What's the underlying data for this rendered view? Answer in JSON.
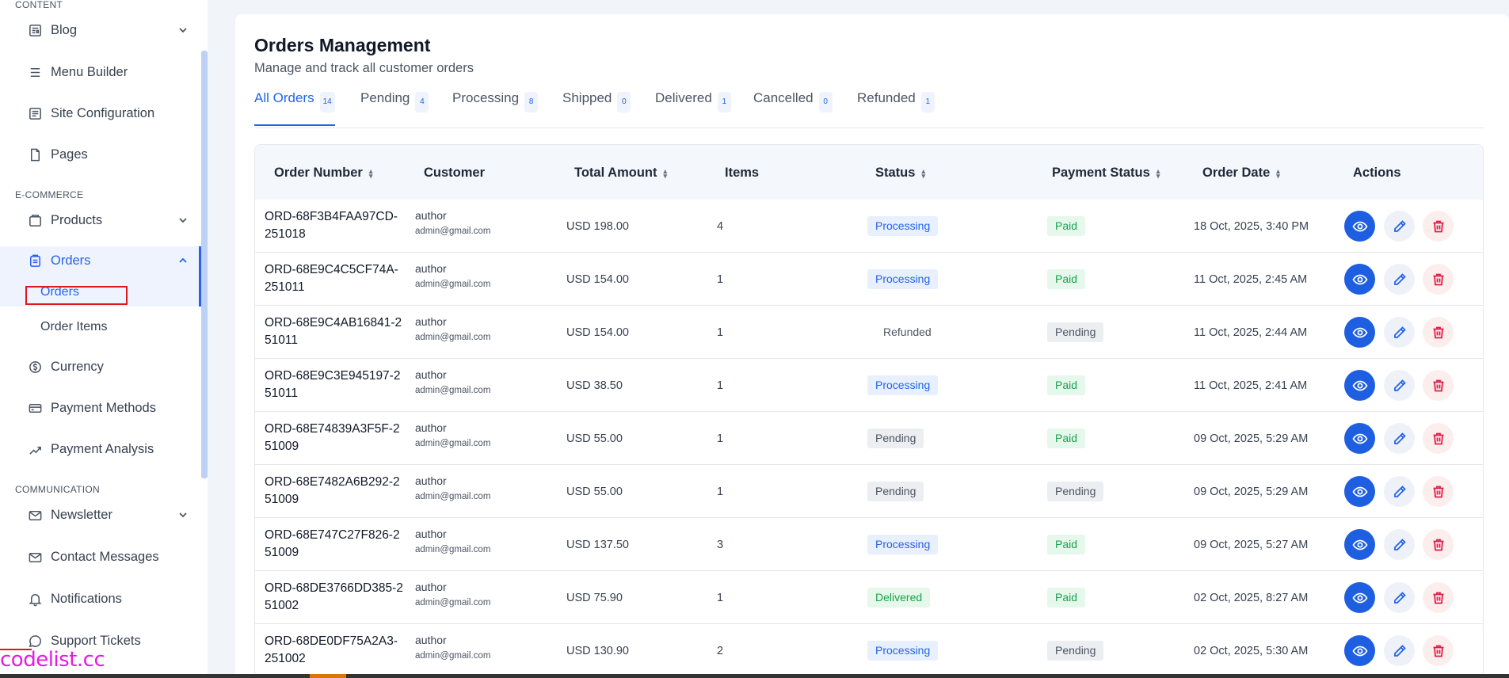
{
  "sidebar": {
    "sections": {
      "content": "CONTENT",
      "ecommerce": "E-COMMERCE",
      "communication": "COMMUNICATION"
    },
    "items": {
      "blog": "Blog",
      "menu_builder": "Menu Builder",
      "site_configuration": "Site Configuration",
      "pages": "Pages",
      "products": "Products",
      "orders": "Orders",
      "currency": "Currency",
      "payment_methods": "Payment Methods",
      "payment_analysis": "Payment Analysis",
      "newsletter": "Newsletter",
      "contact_messages": "Contact Messages",
      "notifications": "Notifications",
      "support_tickets": "Support Tickets"
    },
    "sub_items": {
      "orders": "Orders",
      "order_items": "Order Items"
    },
    "accent_color": "#2563eb"
  },
  "watermark": "codelist.cc",
  "page": {
    "title": "Orders Management",
    "subtitle": "Manage and track all customer orders"
  },
  "tabs": [
    {
      "label": "All Orders",
      "count": "14"
    },
    {
      "label": "Pending",
      "count": "4"
    },
    {
      "label": "Processing",
      "count": "8"
    },
    {
      "label": "Shipped",
      "count": "0"
    },
    {
      "label": "Delivered",
      "count": "1"
    },
    {
      "label": "Cancelled",
      "count": "0"
    },
    {
      "label": "Refunded",
      "count": "1"
    }
  ],
  "table": {
    "headers": {
      "order_number": "Order Number",
      "customer": "Customer",
      "total_amount": "Total Amount",
      "items": "Items",
      "status": "Status",
      "payment_status": "Payment Status",
      "order_date": "Order Date",
      "actions": "Actions"
    },
    "rows": [
      {
        "order_number": "ORD-68F3B4FAA97CD-251018",
        "customer": "author",
        "email": "admin@gmail.com",
        "total": "USD 198.00",
        "items": "4",
        "status": "Processing",
        "payment": "Paid",
        "date": "18 Oct, 2025, 3:40 PM"
      },
      {
        "order_number": "ORD-68E9C4C5CF74A-251011",
        "customer": "author",
        "email": "admin@gmail.com",
        "total": "USD 154.00",
        "items": "1",
        "status": "Processing",
        "payment": "Paid",
        "date": "11 Oct, 2025, 2:45 AM"
      },
      {
        "order_number": "ORD-68E9C4AB16841-251011",
        "customer": "author",
        "email": "admin@gmail.com",
        "total": "USD 154.00",
        "items": "1",
        "status": "Refunded",
        "payment": "Pending",
        "date": "11 Oct, 2025, 2:44 AM"
      },
      {
        "order_number": "ORD-68E9C3E945197-251011",
        "customer": "author",
        "email": "admin@gmail.com",
        "total": "USD 38.50",
        "items": "1",
        "status": "Processing",
        "payment": "Paid",
        "date": "11 Oct, 2025, 2:41 AM"
      },
      {
        "order_number": "ORD-68E74839A3F5F-251009",
        "customer": "author",
        "email": "admin@gmail.com",
        "total": "USD 55.00",
        "items": "1",
        "status": "Pending",
        "payment": "Paid",
        "date": "09 Oct, 2025, 5:29 AM"
      },
      {
        "order_number": "ORD-68E7482A6B292-251009",
        "customer": "author",
        "email": "admin@gmail.com",
        "total": "USD 55.00",
        "items": "1",
        "status": "Pending",
        "payment": "Pending",
        "date": "09 Oct, 2025, 5:29 AM"
      },
      {
        "order_number": "ORD-68E747C27F826-251009",
        "customer": "author",
        "email": "admin@gmail.com",
        "total": "USD 137.50",
        "items": "3",
        "status": "Processing",
        "payment": "Paid",
        "date": "09 Oct, 2025, 5:27 AM"
      },
      {
        "order_number": "ORD-68DE3766DD385-251002",
        "customer": "author",
        "email": "admin@gmail.com",
        "total": "USD 75.90",
        "items": "1",
        "status": "Delivered",
        "payment": "Paid",
        "date": "02 Oct, 2025, 8:27 AM"
      },
      {
        "order_number": "ORD-68DE0DF75A2A3-251002",
        "customer": "author",
        "email": "admin@gmail.com",
        "total": "USD 130.90",
        "items": "2",
        "status": "Processing",
        "payment": "Pending",
        "date": "02 Oct, 2025, 5:30 AM"
      }
    ]
  },
  "icons": {
    "view": "eye-icon",
    "edit": "pencil-icon",
    "delete": "trash-icon"
  }
}
